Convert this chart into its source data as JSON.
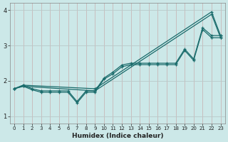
{
  "xlabel": "Humidex (Indice chaleur)",
  "ylabel": "",
  "xlim": [
    -0.5,
    23.5
  ],
  "ylim": [
    0.8,
    4.2
  ],
  "yticks": [
    1,
    2,
    3,
    4
  ],
  "xticks": [
    0,
    1,
    2,
    3,
    4,
    5,
    6,
    7,
    8,
    9,
    10,
    11,
    12,
    13,
    14,
    15,
    16,
    17,
    18,
    19,
    20,
    21,
    22,
    23
  ],
  "bg_color": "#cce8e8",
  "grid_color_v": "#c8b8b8",
  "grid_color_h": "#b8c8c8",
  "line_color": "#1a6b6b",
  "line1_x": [
    0,
    1,
    2,
    3,
    4,
    5,
    6,
    7,
    8,
    9,
    10,
    11,
    12,
    13,
    14,
    15,
    16,
    17,
    18,
    19,
    20,
    21,
    22,
    23
  ],
  "line1_y": [
    1.78,
    1.88,
    1.78,
    1.72,
    1.72,
    1.72,
    1.72,
    1.42,
    1.72,
    1.72,
    2.08,
    2.25,
    2.45,
    2.5,
    2.5,
    2.5,
    2.5,
    2.5,
    2.5,
    2.9,
    2.62,
    3.5,
    3.28,
    3.28
  ],
  "line2_x": [
    0,
    1,
    2,
    3,
    4,
    5,
    6,
    7,
    8,
    9,
    10,
    11,
    12,
    13,
    14,
    15,
    16,
    17,
    18,
    19,
    20,
    21,
    22,
    23
  ],
  "line2_y": [
    1.78,
    1.85,
    1.75,
    1.68,
    1.68,
    1.68,
    1.68,
    1.38,
    1.68,
    1.68,
    2.05,
    2.2,
    2.4,
    2.46,
    2.46,
    2.46,
    2.46,
    2.46,
    2.46,
    2.86,
    2.58,
    3.45,
    3.22,
    3.22
  ],
  "line3_x": [
    0,
    1,
    9,
    22,
    23
  ],
  "line3_y": [
    1.78,
    1.88,
    1.78,
    3.95,
    3.28
  ],
  "line4_x": [
    0,
    1,
    9,
    22,
    23
  ],
  "line4_y": [
    1.78,
    1.85,
    1.72,
    3.88,
    3.22
  ]
}
